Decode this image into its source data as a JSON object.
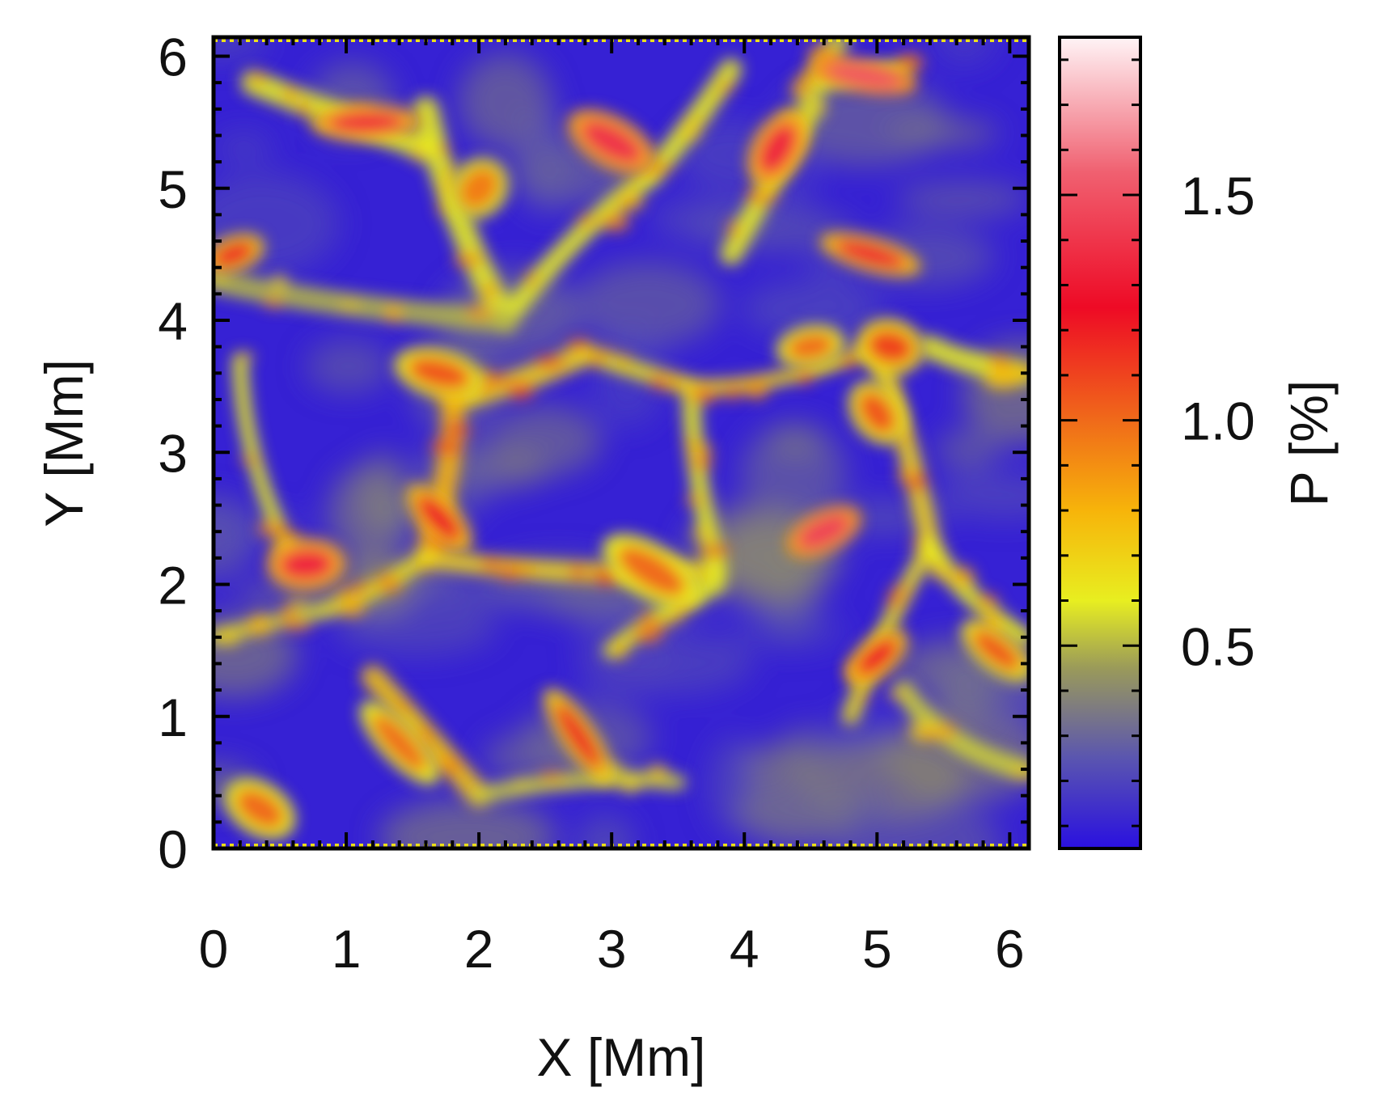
{
  "chart_data": {
    "type": "heatmap",
    "title": "",
    "xlabel": "X [Mm]",
    "ylabel": "Y [Mm]",
    "colorbar_label": "P [%]",
    "xlim": [
      0,
      6.144
    ],
    "ylim": [
      0,
      6.144
    ],
    "x_ticks": [
      "0",
      "1",
      "2",
      "3",
      "4",
      "5",
      "6"
    ],
    "y_ticks": [
      "0",
      "1",
      "2",
      "3",
      "4",
      "5",
      "6"
    ],
    "x_tick_values": [
      0,
      1,
      2,
      3,
      4,
      5,
      6
    ],
    "y_tick_values": [
      0,
      1,
      2,
      3,
      4,
      5,
      6
    ],
    "colorbar_range": [
      0.05,
      1.85
    ],
    "colorbar_ticks": [
      "0.5",
      "1.0",
      "1.5"
    ],
    "colorbar_tick_values": [
      0.5,
      1.0,
      1.5
    ],
    "colormap": [
      {
        "value": 0.05,
        "color": "#2a10e0"
      },
      {
        "value": 0.25,
        "color": "#5a55b0"
      },
      {
        "value": 0.45,
        "color": "#9a9a5a"
      },
      {
        "value": 0.6,
        "color": "#e8ee20"
      },
      {
        "value": 0.8,
        "color": "#f7b40a"
      },
      {
        "value": 1.0,
        "color": "#f06a1a"
      },
      {
        "value": 1.25,
        "color": "#ee0a25"
      },
      {
        "value": 1.55,
        "color": "#f06070"
      },
      {
        "value": 1.85,
        "color": "#fff4f6"
      }
    ],
    "structures": {
      "background_value": 0.1,
      "lanes": [
        {
          "x0": 1.8,
          "y0": 3.4,
          "x1": 2.8,
          "y1": 3.75,
          "value": 0.7
        },
        {
          "x0": 2.8,
          "y0": 3.75,
          "x1": 3.6,
          "y1": 3.5,
          "value": 0.65
        },
        {
          "x0": 1.8,
          "y0": 3.4,
          "x1": 1.6,
          "y1": 2.2,
          "value": 0.8
        },
        {
          "x0": 1.6,
          "y0": 2.2,
          "x1": 3.8,
          "y1": 2.1,
          "value": 0.7
        },
        {
          "x0": 3.8,
          "y0": 2.1,
          "x1": 3.6,
          "y1": 3.5,
          "value": 0.6
        },
        {
          "x0": 3.6,
          "y0": 3.5,
          "x1": 5.0,
          "y1": 3.8,
          "value": 0.7
        },
        {
          "x0": 5.0,
          "y0": 3.8,
          "x1": 5.4,
          "y1": 2.3,
          "value": 0.7
        },
        {
          "x0": 5.4,
          "y0": 2.3,
          "x1": 4.8,
          "y1": 1.0,
          "value": 0.65
        },
        {
          "x0": 1.6,
          "y0": 2.2,
          "x1": 0.8,
          "y1": 1.8,
          "value": 0.65
        },
        {
          "x0": 0.8,
          "y0": 1.8,
          "x1": 0.0,
          "y1": 1.6,
          "value": 0.55
        },
        {
          "x0": 1.2,
          "y0": 1.3,
          "x1": 2.0,
          "y1": 0.4,
          "value": 0.75
        },
        {
          "x0": 2.0,
          "y0": 0.4,
          "x1": 3.5,
          "y1": 0.5,
          "value": 0.55
        },
        {
          "x0": 2.2,
          "y0": 4.0,
          "x1": 1.6,
          "y1": 5.6,
          "value": 0.6
        },
        {
          "x0": 2.2,
          "y0": 4.0,
          "x1": 3.3,
          "y1": 5.1,
          "value": 0.6
        },
        {
          "x0": 3.3,
          "y0": 5.1,
          "x1": 3.9,
          "y1": 5.9,
          "value": 0.6
        },
        {
          "x0": 3.9,
          "y0": 4.5,
          "x1": 4.5,
          "y1": 5.6,
          "value": 0.6
        },
        {
          "x0": 4.5,
          "y0": 5.6,
          "x1": 4.7,
          "y1": 6.1,
          "value": 0.55
        },
        {
          "x0": 0.0,
          "y0": 4.3,
          "x1": 2.2,
          "y1": 4.0,
          "value": 0.5
        },
        {
          "x0": 0.2,
          "y0": 3.7,
          "x1": 0.6,
          "y1": 2.2,
          "value": 0.6
        },
        {
          "x0": 5.4,
          "y0": 3.8,
          "x1": 6.1,
          "y1": 3.6,
          "value": 0.6
        },
        {
          "x0": 5.4,
          "y0": 2.3,
          "x1": 6.1,
          "y1": 1.6,
          "value": 0.6
        },
        {
          "x0": 3.0,
          "y0": 1.5,
          "x1": 3.8,
          "y1": 2.0,
          "value": 0.6
        },
        {
          "x0": 0.3,
          "y0": 5.8,
          "x1": 1.6,
          "y1": 5.3,
          "value": 0.6
        },
        {
          "x0": 4.6,
          "y0": 5.8,
          "x1": 5.2,
          "y1": 5.9,
          "value": 0.6
        },
        {
          "x0": 5.2,
          "y0": 1.2,
          "x1": 6.1,
          "y1": 0.6,
          "value": 0.55
        }
      ],
      "hotspots": [
        {
          "x": 4.9,
          "y": 5.85,
          "value": 1.5
        },
        {
          "x": 3.0,
          "y": 5.35,
          "value": 1.4
        },
        {
          "x": 4.25,
          "y": 5.3,
          "value": 1.35
        },
        {
          "x": 1.15,
          "y": 5.5,
          "value": 1.35
        },
        {
          "x": 0.15,
          "y": 4.5,
          "value": 1.2
        },
        {
          "x": 4.95,
          "y": 4.5,
          "value": 1.3
        },
        {
          "x": 1.7,
          "y": 2.5,
          "value": 1.25
        },
        {
          "x": 0.7,
          "y": 2.15,
          "value": 1.35
        },
        {
          "x": 4.6,
          "y": 2.4,
          "value": 1.45
        },
        {
          "x": 5.0,
          "y": 1.45,
          "value": 1.25
        },
        {
          "x": 2.75,
          "y": 0.85,
          "value": 1.2
        },
        {
          "x": 1.7,
          "y": 3.6,
          "value": 1.05
        },
        {
          "x": 5.1,
          "y": 3.8,
          "value": 1.1
        },
        {
          "x": 0.35,
          "y": 0.3,
          "value": 1.0
        },
        {
          "x": 5.0,
          "y": 3.3,
          "value": 1.05
        },
        {
          "x": 5.9,
          "y": 1.5,
          "value": 1.05
        },
        {
          "x": 3.3,
          "y": 2.1,
          "value": 1.0
        },
        {
          "x": 1.4,
          "y": 0.8,
          "value": 1.0
        },
        {
          "x": 4.5,
          "y": 3.8,
          "value": 1.0
        },
        {
          "x": 2.0,
          "y": 5.0,
          "value": 0.95
        }
      ]
    }
  }
}
